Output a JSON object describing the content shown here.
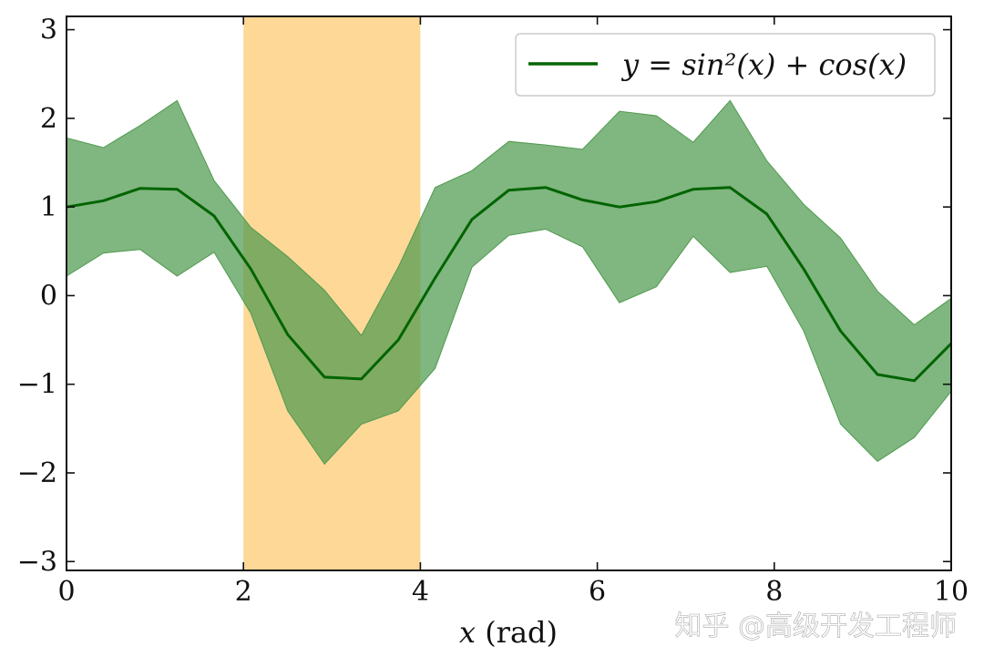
{
  "chart_data": {
    "type": "line",
    "title": "",
    "xlabel_var": "x",
    "xlabel_unit": " (rad)",
    "ylabel": "",
    "xlim": [
      0,
      10
    ],
    "ylim": [
      -3.1,
      3.15
    ],
    "xticks": [
      0,
      2,
      4,
      6,
      8,
      10
    ],
    "xtick_labels": [
      "0",
      "2",
      "4",
      "6",
      "8",
      "10"
    ],
    "yticks": [
      -3,
      -2,
      -1,
      0,
      1,
      2,
      3
    ],
    "ytick_labels": [
      "−3",
      "−2",
      "−1",
      "0",
      "1",
      "2",
      "3"
    ],
    "grid": false,
    "legend_position": "top-right",
    "highlight_span": {
      "x_start": 2,
      "x_end": 4,
      "color": "#fdd896"
    },
    "series": [
      {
        "name": "y = sin²(x) + cos(x)",
        "color": "#006400",
        "fill_color": "#4f9a4f",
        "x": [
          0,
          0.417,
          0.833,
          1.25,
          1.667,
          2.083,
          2.5,
          2.917,
          3.333,
          3.75,
          4.167,
          4.583,
          5.0,
          5.417,
          5.833,
          6.25,
          6.667,
          7.083,
          7.5,
          7.917,
          8.333,
          8.75,
          9.167,
          9.583,
          10.0
        ],
        "y": [
          1.0,
          1.07,
          1.21,
          1.2,
          0.9,
          0.3,
          -0.44,
          -0.92,
          -0.94,
          -0.5,
          0.2,
          0.86,
          1.19,
          1.22,
          1.08,
          1.0,
          1.06,
          1.2,
          1.22,
          0.92,
          0.3,
          -0.4,
          -0.89,
          -0.96,
          -0.54
        ],
        "lower": [
          0.22,
          0.48,
          0.52,
          0.22,
          0.49,
          -0.2,
          -1.3,
          -1.9,
          -1.45,
          -1.3,
          -0.82,
          0.32,
          0.68,
          0.75,
          0.55,
          -0.08,
          0.1,
          0.67,
          0.26,
          0.33,
          -0.4,
          -1.45,
          -1.87,
          -1.6,
          -1.08
        ],
        "upper": [
          1.78,
          1.67,
          1.92,
          2.2,
          1.3,
          0.77,
          0.44,
          0.06,
          -0.45,
          0.32,
          1.22,
          1.41,
          1.74,
          1.7,
          1.65,
          2.08,
          2.03,
          1.73,
          2.2,
          1.52,
          1.03,
          0.65,
          0.05,
          -0.33,
          -0.03
        ]
      }
    ]
  },
  "watermark": "知乎 @高级开发工程师"
}
